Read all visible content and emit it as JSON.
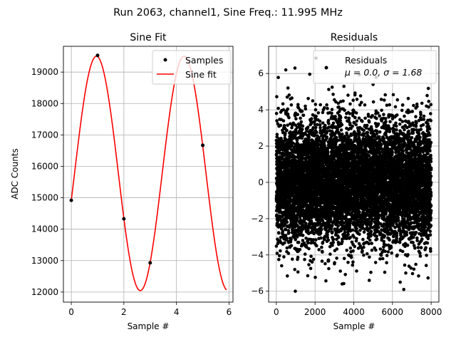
{
  "suptitle": "Run 2063, channel1, Sine Freq.: 11.995 MHz",
  "chart_data": [
    {
      "type": "line",
      "title": "Sine Fit",
      "xlabel": "Sample #",
      "ylabel": "ADC Counts",
      "xlim": [
        -0.3,
        6.15
      ],
      "ylim": [
        11680,
        19820
      ],
      "xticks": [
        0,
        2,
        4,
        6
      ],
      "yticks": [
        12000,
        13000,
        14000,
        15000,
        16000,
        17000,
        18000,
        19000
      ],
      "grid": true,
      "legend_position": "top-right",
      "fit": {
        "mean": 15775,
        "amplitude": 3730,
        "period": 3.335,
        "phase_point": 0.0,
        "phase_value": 14920,
        "x_range": [
          0,
          5.9
        ]
      },
      "series": [
        {
          "name": "Samples",
          "kind": "scatter",
          "color": "#000000",
          "points": [
            [
              0,
              14920
            ],
            [
              1,
              19530
            ],
            [
              2,
              14330
            ],
            [
              3,
              12930
            ],
            [
              5,
              16670
            ]
          ]
        },
        {
          "name": "Sine fit",
          "kind": "line",
          "color": "#ff0000"
        }
      ]
    },
    {
      "type": "scatter",
      "title": "Residuals",
      "xlabel": "Sample #",
      "xlim": [
        -400,
        8400
      ],
      "ylim": [
        -6.6,
        7.5
      ],
      "xticks": [
        0,
        2000,
        4000,
        6000,
        8000
      ],
      "yticks": [
        -6,
        -4,
        -2,
        0,
        2,
        4,
        6
      ],
      "grid": true,
      "legend_position": "top-right",
      "stats": {
        "mu": 0.0,
        "sigma": 1.68,
        "n_points": 8000
      },
      "series": [
        {
          "name": "Residuals",
          "legend_line2": "μ = 0.0, σ = 1.68",
          "color": "#000000",
          "outliers": [
            [
              980,
              -6.0
            ],
            [
              960,
              6.3
            ],
            [
              2050,
              6.85
            ],
            [
              6400,
              -5.5
            ],
            [
              3400,
              -5.6
            ],
            [
              4800,
              -5.4
            ],
            [
              5000,
              5.4
            ],
            [
              600,
              5.2
            ]
          ]
        }
      ]
    }
  ]
}
